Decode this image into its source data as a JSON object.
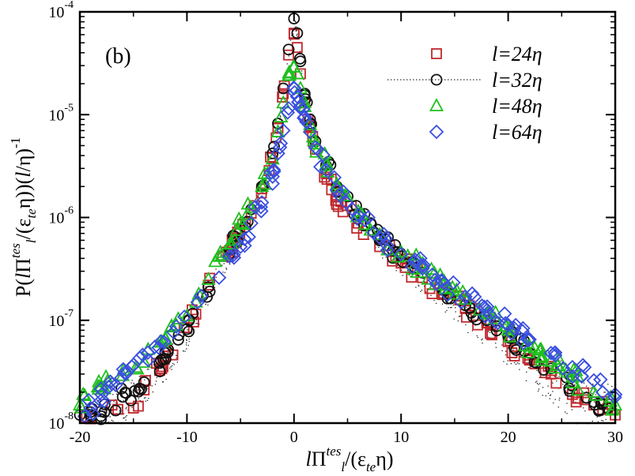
{
  "chart_data": {
    "type": "scatter",
    "panel_label": "(b)",
    "xlabel": "lΠ^tes_l/(ε_te η)",
    "ylabel": "P(lΠ^tes_l/(ε_te η))(l/η)^-1",
    "xlim": [
      -20,
      30
    ],
    "ylim_log10": [
      -8,
      -4
    ],
    "yscale": "log",
    "x_ticks": [
      -20,
      -10,
      0,
      10,
      20,
      30
    ],
    "x_tick_labels": [
      "-20",
      "-10",
      "0",
      "10",
      "20",
      "30"
    ],
    "y_tick_exponents": [
      -8,
      -7,
      -6,
      -5,
      -4
    ],
    "y_tick_labels": [
      "10-8",
      "10-7",
      "10-6",
      "10-5",
      "10-4"
    ],
    "legend_position": "top-right",
    "series": [
      {
        "name": "l=24η",
        "marker": "square",
        "color": "#c0282d",
        "x": [
          -19,
          -17,
          -15,
          -14,
          -12,
          -10,
          -8,
          -6,
          -4,
          -3,
          -2,
          -1.5,
          -1,
          -0.5,
          0,
          0.3,
          0.6,
          1,
          1.5,
          2,
          3,
          4,
          6,
          8,
          10,
          12,
          14,
          16,
          18,
          20,
          22,
          24,
          26,
          28,
          30
        ],
        "y": [
          1.1e-08,
          1.5e-08,
          1.4e-08,
          2.1e-08,
          4.5e-08,
          8.5e-08,
          2.2e-07,
          4.8e-07,
          1.1e-06,
          1.9e-06,
          3.8e-06,
          7.5e-06,
          1.6e-05,
          3.8e-05,
          6.2e-05,
          4.5e-05,
          2.5e-05,
          1.3e-05,
          7.8e-06,
          4.6e-06,
          2.7e-06,
          1.6e-06,
          8.8e-07,
          5.2e-07,
          3.6e-07,
          2.6e-07,
          1.8e-07,
          1.3e-07,
          9.5e-08,
          6.2e-08,
          4.1e-08,
          3e-08,
          1.9e-08,
          1.5e-08,
          1.2e-08
        ]
      },
      {
        "name": "l=32η",
        "marker": "circle",
        "color": "#111111",
        "x": [
          -20,
          -18,
          -16,
          -14,
          -12,
          -10,
          -8,
          -6,
          -4,
          -3,
          -2,
          -1.5,
          -1,
          -0.5,
          0,
          0.3,
          0.6,
          1,
          1.5,
          2,
          3,
          4,
          6,
          8,
          10,
          12,
          14,
          16,
          18,
          20,
          22,
          24,
          26,
          28
        ],
        "y": [
          1.2e-08,
          1.3e-08,
          1.8e-08,
          2.5e-08,
          4.2e-08,
          8.2e-08,
          2.1e-07,
          5e-07,
          1.2e-06,
          2e-06,
          4.2e-06,
          8.2e-06,
          1.8e-05,
          4.3e-05,
          8.6e-05,
          6.2e-05,
          3.3e-05,
          1.6e-05,
          9e-06,
          5.5e-06,
          3.2e-06,
          2e-06,
          1.05e-06,
          6.2e-07,
          4.2e-07,
          2.9e-07,
          2e-07,
          1.4e-07,
          1e-07,
          7e-08,
          4.8e-08,
          3.4e-08,
          2.3e-08,
          1.6e-08
        ]
      },
      {
        "name": "l=48η",
        "marker": "triangle",
        "color": "#1fbf1f",
        "x": [
          -20,
          -18,
          -16,
          -14,
          -12,
          -10,
          -8,
          -6,
          -4,
          -3,
          -2,
          -1.5,
          -1,
          -0.5,
          0,
          0.3,
          0.6,
          1,
          1.5,
          2,
          3,
          4,
          6,
          8,
          10,
          12,
          14,
          16,
          18,
          20,
          22,
          24,
          26,
          28,
          30
        ],
        "y": [
          1.5e-08,
          2.3e-08,
          2.9e-08,
          3.9e-08,
          6.5e-08,
          1.1e-07,
          2.5e-07,
          5.5e-07,
          1.25e-06,
          2e-06,
          3.7e-06,
          6.8e-06,
          1.3e-05,
          2.4e-05,
          2.9e-05,
          2.5e-05,
          1.8e-05,
          1.2e-05,
          8e-06,
          5.2e-06,
          3.2e-06,
          2.1e-06,
          1.15e-06,
          6.8e-07,
          4.6e-07,
          3.2e-07,
          2.2e-07,
          1.6e-07,
          1.15e-07,
          8e-08,
          5.6e-08,
          4e-08,
          2.8e-08,
          2e-08,
          1.5e-08
        ]
      },
      {
        "name": "l=64η",
        "marker": "diamond",
        "color": "#3a4fe0",
        "x": [
          -19,
          -17,
          -15,
          -13,
          -11,
          -9,
          -7,
          -5,
          -4,
          -3,
          -2,
          -1.5,
          -1,
          -0.5,
          0,
          0.3,
          0.6,
          1,
          1.5,
          2,
          3,
          4,
          6,
          8,
          10,
          12,
          14,
          16,
          18,
          20,
          22,
          24,
          26,
          28,
          30
        ],
        "y": [
          1.4e-08,
          2.4e-08,
          3.7e-08,
          5.5e-08,
          8.7e-08,
          1.5e-07,
          2.6e-07,
          5.2e-07,
          8.8e-07,
          1.4e-06,
          2.5e-06,
          4.2e-06,
          7e-06,
          1.15e-05,
          1.8e-05,
          1.5e-05,
          1.2e-05,
          9.5e-06,
          6.8e-06,
          4.8e-06,
          2.9e-06,
          1.85e-06,
          1.05e-06,
          6.4e-07,
          4.4e-07,
          3.2e-07,
          2.3e-07,
          1.7e-07,
          1.25e-07,
          9e-08,
          6.5e-08,
          4.8e-08,
          3.5e-08,
          2.6e-08,
          1.9e-08
        ]
      }
    ]
  }
}
